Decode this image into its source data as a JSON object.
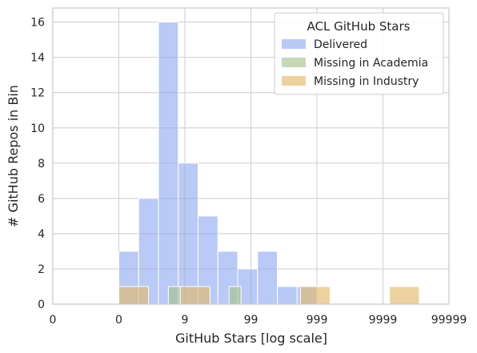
{
  "chart_data": {
    "type": "bar",
    "xlabel": "GitHub Stars [log scale]",
    "ylabel": "# GitHub Repos in Bin",
    "x_scale": "log",
    "x_tick_labels": [
      "0",
      "0",
      "9",
      "99",
      "999",
      "9999",
      "99999"
    ],
    "y_ticks": [
      0,
      2,
      4,
      6,
      8,
      10,
      12,
      14,
      16
    ],
    "ylim": [
      0,
      16.8
    ],
    "grid": true,
    "legend": {
      "title": "ACL GitHub Stars",
      "placement": "top-right"
    },
    "series": [
      {
        "name": "Delivered",
        "color": "#8faaf1",
        "bins": [
          {
            "from": 0.0,
            "to": 0.3,
            "count": 3
          },
          {
            "from": 0.3,
            "to": 0.6,
            "count": 6
          },
          {
            "from": 0.6,
            "to": 0.9,
            "count": 16
          },
          {
            "from": 0.9,
            "to": 1.2,
            "count": 8
          },
          {
            "from": 1.2,
            "to": 1.5,
            "count": 5
          },
          {
            "from": 1.5,
            "to": 1.8,
            "count": 3
          },
          {
            "from": 1.8,
            "to": 2.1,
            "count": 2
          },
          {
            "from": 2.1,
            "to": 2.4,
            "count": 3
          },
          {
            "from": 2.4,
            "to": 2.7,
            "count": 1
          },
          {
            "from": 2.7,
            "to": 3.0,
            "count": 1
          }
        ]
      },
      {
        "name": "Missing in Academia",
        "color": "#a5c08c",
        "bins": [
          {
            "from": 0.75,
            "to": 0.93,
            "count": 1
          },
          {
            "from": 1.67,
            "to": 1.85,
            "count": 1
          }
        ]
      },
      {
        "name": "Missing in Industry",
        "color": "#e2b666",
        "bins": [
          {
            "from": 0.0,
            "to": 0.45,
            "count": 1
          },
          {
            "from": 0.93,
            "to": 1.38,
            "count": 1
          },
          {
            "from": 2.75,
            "to": 3.2,
            "count": 1
          },
          {
            "from": 4.1,
            "to": 4.55,
            "count": 1
          }
        ]
      }
    ]
  }
}
